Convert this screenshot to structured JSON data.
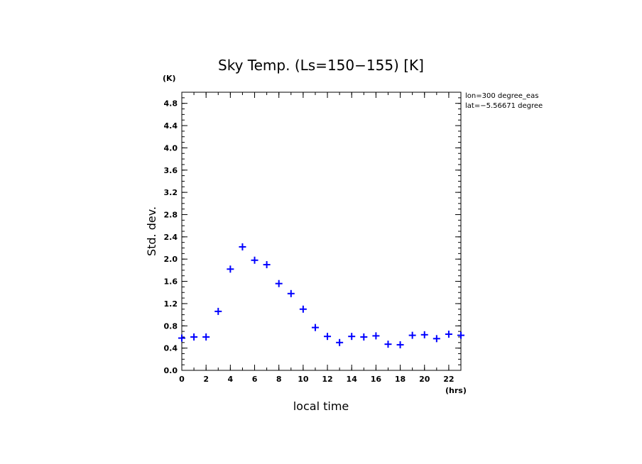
{
  "chart_data": {
    "type": "scatter",
    "title": "Sky Temp. (Ls=150−155) [K]",
    "xlabel": "local time",
    "ylabel": "Std. dev.",
    "x_unit": "(hrs)",
    "y_unit": "(K)",
    "xlim": [
      0,
      23
    ],
    "ylim": [
      0,
      5.0
    ],
    "x_ticks": [
      0,
      2,
      4,
      6,
      8,
      10,
      12,
      14,
      16,
      18,
      20,
      22
    ],
    "y_ticks": [
      "0.0",
      "0.4",
      "0.8",
      "1.2",
      "1.6",
      "2.0",
      "2.4",
      "2.8",
      "3.2",
      "3.6",
      "4.0",
      "4.4",
      "4.8"
    ],
    "annotations": [
      "lon=300 degree_eas",
      "lat=−5.56671 degree"
    ],
    "marker": "+",
    "marker_color": "#0000ff",
    "grid": false,
    "series": [
      {
        "x": [
          0,
          1,
          2,
          3,
          4,
          5,
          6,
          7,
          8,
          9,
          10,
          11,
          12,
          13,
          14,
          15,
          16,
          17,
          18,
          19,
          20,
          21,
          22,
          23
        ],
        "values": [
          0.58,
          0.6,
          0.6,
          1.06,
          1.82,
          2.22,
          1.98,
          1.9,
          1.56,
          1.38,
          1.1,
          0.77,
          0.61,
          0.5,
          0.61,
          0.6,
          0.62,
          0.47,
          0.46,
          0.63,
          0.64,
          0.57,
          0.65,
          0.63
        ]
      }
    ]
  }
}
